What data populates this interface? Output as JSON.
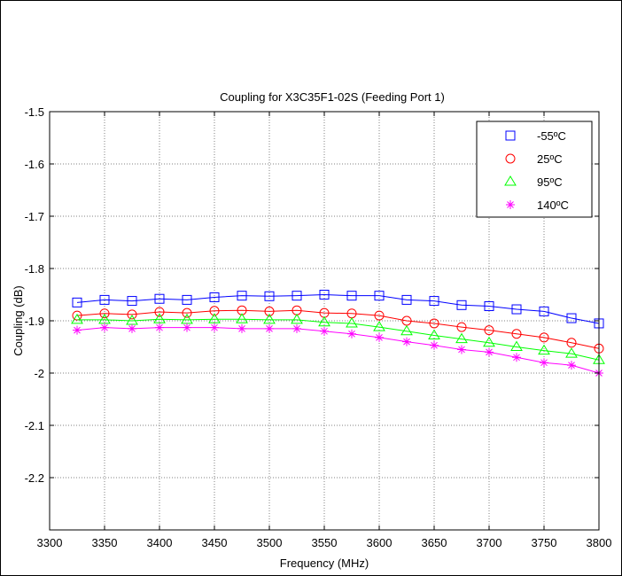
{
  "chart_data": {
    "type": "line",
    "title": "Coupling for X3C35F1-02S (Feeding Port 1)",
    "xlabel": "Frequency (MHz)",
    "ylabel": "Coupling (dB)",
    "xlim": [
      3300,
      3800
    ],
    "ylim": [
      -2.3,
      -1.5
    ],
    "xticks": [
      3300,
      3350,
      3400,
      3450,
      3500,
      3550,
      3600,
      3650,
      3700,
      3750,
      3800
    ],
    "yticks": [
      -1.5,
      -1.6,
      -1.7,
      -1.8,
      -1.9,
      -2,
      -2.1,
      -2.2
    ],
    "grid": true,
    "legend_position": "top-right",
    "x": [
      3325,
      3350,
      3375,
      3400,
      3425,
      3450,
      3475,
      3500,
      3525,
      3550,
      3575,
      3600,
      3625,
      3650,
      3675,
      3700,
      3725,
      3750,
      3775,
      3800
    ],
    "series": [
      {
        "name": "-55ºC",
        "color": "#0000ff",
        "marker": "square",
        "values": [
          -1.865,
          -1.86,
          -1.862,
          -1.858,
          -1.86,
          -1.855,
          -1.852,
          -1.853,
          -1.852,
          -1.85,
          -1.852,
          -1.852,
          -1.86,
          -1.862,
          -1.87,
          -1.872,
          -1.878,
          -1.882,
          -1.895,
          -1.905
        ]
      },
      {
        "name": "25ºC",
        "color": "#ff0000",
        "marker": "circle",
        "values": [
          -1.89,
          -1.886,
          -1.888,
          -1.883,
          -1.885,
          -1.881,
          -1.88,
          -1.882,
          -1.88,
          -1.885,
          -1.886,
          -1.89,
          -1.9,
          -1.905,
          -1.912,
          -1.918,
          -1.925,
          -1.932,
          -1.942,
          -1.953
        ]
      },
      {
        "name": "95ºC",
        "color": "#00ff00",
        "marker": "triangle",
        "values": [
          -1.898,
          -1.898,
          -1.9,
          -1.897,
          -1.898,
          -1.897,
          -1.897,
          -1.898,
          -1.898,
          -1.903,
          -1.905,
          -1.912,
          -1.92,
          -1.928,
          -1.935,
          -1.942,
          -1.95,
          -1.957,
          -1.963,
          -1.975
        ]
      },
      {
        "name": "140ºC",
        "color": "#ff00ff",
        "marker": "asterisk",
        "values": [
          -1.918,
          -1.913,
          -1.915,
          -1.913,
          -1.913,
          -1.913,
          -1.915,
          -1.915,
          -1.915,
          -1.92,
          -1.925,
          -1.932,
          -1.94,
          -1.947,
          -1.955,
          -1.96,
          -1.97,
          -1.98,
          -1.985,
          -2.0
        ]
      }
    ]
  }
}
